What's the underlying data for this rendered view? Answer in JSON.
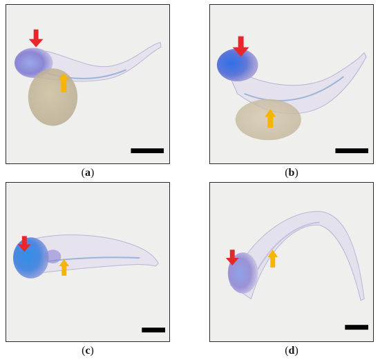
{
  "figure": {
    "panels": [
      {
        "id": "a",
        "caption_open": "(",
        "caption_letter": "a",
        "caption_close": ")",
        "arrows": [
          "red-arrow",
          "yellow-arrow"
        ],
        "scale_bar_color": "#000000"
      },
      {
        "id": "b",
        "caption_open": "(",
        "caption_letter": "b",
        "caption_close": ")",
        "arrows": [
          "red-arrow",
          "yellow-arrow"
        ],
        "scale_bar_color": "#000000"
      },
      {
        "id": "c",
        "caption_open": "(",
        "caption_letter": "c",
        "caption_close": ")",
        "arrows": [
          "red-arrow",
          "yellow-arrow"
        ],
        "scale_bar_color": "#000000"
      },
      {
        "id": "d",
        "caption_open": "(",
        "caption_letter": "d",
        "caption_close": ")",
        "arrows": [
          "red-arrow",
          "yellow-arrow"
        ],
        "scale_bar_color": "#000000"
      }
    ],
    "colors": {
      "red_arrow": "#e8272c",
      "yellow_arrow": "#f7b500",
      "stain_blue": "#3a6fe0",
      "stain_purple": "#8a7fd0",
      "yolk": "#c9b79a"
    }
  }
}
